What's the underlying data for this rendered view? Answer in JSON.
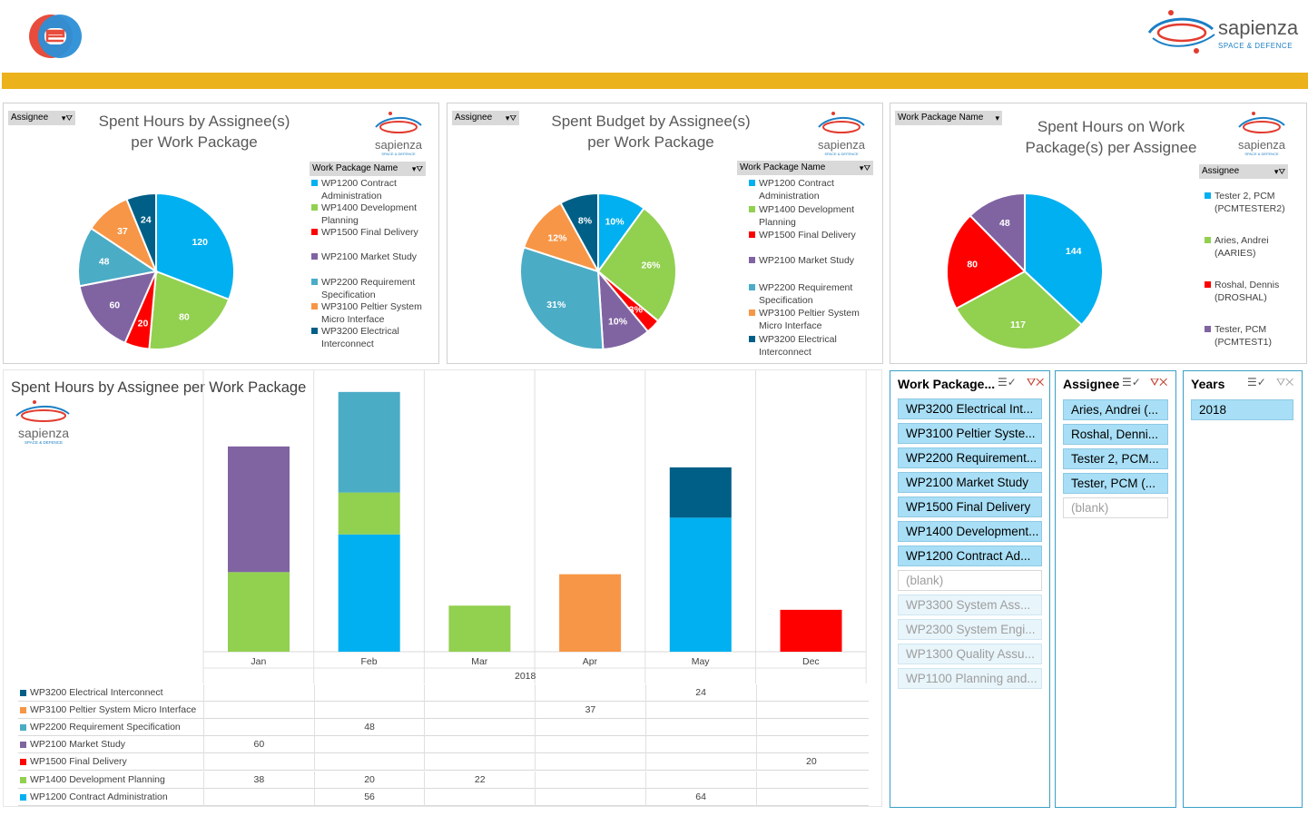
{
  "colors": {
    "wp1200": "#00b0f0",
    "wp1400": "#92d050",
    "wp1500": "#ff0000",
    "wp2100": "#8064a2",
    "wp2200": "#4bacc6",
    "wp3100": "#f79646",
    "wp3200": "#005f87",
    "gold": "#ecb21c",
    "slicer_border": "#3aa0c8"
  },
  "header": {
    "left_logo": "e-logo",
    "right_logo": {
      "name": "sapienza",
      "tagline": "SPACE & DEFENCE"
    }
  },
  "chart1": {
    "filter_label": "Assignee",
    "title_line1": "Spent Hours by Assignee(s)",
    "title_line2": "per Work Package",
    "legend_filter": "Work Package Name",
    "legend": [
      {
        "l1": "WP1200 Contract",
        "l2": "Administration"
      },
      {
        "l1": "WP1400 Development",
        "l2": "Planning"
      },
      {
        "l1": "WP1500 Final Delivery",
        "l2": ""
      },
      {
        "l1": "WP2100 Market Study",
        "l2": ""
      },
      {
        "l1": "WP2200 Requirement",
        "l2": "Specification"
      },
      {
        "l1": "WP3100 Peltier System",
        "l2": "Micro Interface"
      },
      {
        "l1": "WP3200 Electrical",
        "l2": "Interconnect"
      }
    ]
  },
  "chart2": {
    "filter_label": "Assignee",
    "title_line1": "Spent Budget by Assignee(s)",
    "title_line2": "per Work Package",
    "legend_filter": "Work Package Name",
    "legend": [
      {
        "l1": "WP1200 Contract",
        "l2": "Administration"
      },
      {
        "l1": "WP1400 Development",
        "l2": "Planning"
      },
      {
        "l1": "WP1500 Final Delivery",
        "l2": ""
      },
      {
        "l1": "WP2100 Market Study",
        "l2": ""
      },
      {
        "l1": "WP2200 Requirement",
        "l2": "Specification"
      },
      {
        "l1": "WP3100 Peltier System",
        "l2": "Micro Interface"
      },
      {
        "l1": "WP3200 Electrical",
        "l2": "Interconnect"
      }
    ]
  },
  "chart3": {
    "filter_label": "Work Package Name",
    "title_line1": "Spent Hours on Work",
    "title_line2": "Package(s) per Assignee",
    "legend_filter": "Assignee",
    "legend": [
      {
        "l1": "Tester 2, PCM",
        "l2": "(PCMTESTER2)"
      },
      {
        "l1": "Aries, Andrei",
        "l2": "(AARIES)"
      },
      {
        "l1": "Roshal, Dennis",
        "l2": "(DROSHAL)"
      },
      {
        "l1": "Tester, PCM",
        "l2": "(PCMTEST1)"
      }
    ]
  },
  "chart4": {
    "title": "Spent Hours by Assignee per Work Package",
    "year_label": "2018"
  },
  "chart_data": [
    {
      "type": "pie",
      "title": "Spent Hours by Assignee(s) per Work Package",
      "slices": [
        {
          "label": "WP1200 Contract Administration",
          "value": 120,
          "color": "#00b0f0",
          "text": "120"
        },
        {
          "label": "WP1400 Development Planning",
          "value": 80,
          "color": "#92d050",
          "text": "80"
        },
        {
          "label": "WP1500 Final Delivery",
          "value": 20,
          "color": "#ff0000",
          "text": "20"
        },
        {
          "label": "WP2100 Market Study",
          "value": 60,
          "color": "#8064a2",
          "text": "60"
        },
        {
          "label": "WP2200 Requirement Specification",
          "value": 48,
          "color": "#4bacc6",
          "text": "48"
        },
        {
          "label": "WP3100 Peltier System Micro Interface",
          "value": 37,
          "color": "#f79646",
          "text": "37"
        },
        {
          "label": "WP3200 Electrical Interconnect",
          "value": 24,
          "color": "#005f87",
          "text": "24"
        }
      ]
    },
    {
      "type": "pie",
      "title": "Spent Budget by Assignee(s) per Work Package",
      "slices": [
        {
          "label": "WP1200 Contract Administration",
          "value": 10,
          "color": "#00b0f0",
          "text": "10%"
        },
        {
          "label": "WP1400 Development Planning",
          "value": 26,
          "color": "#92d050",
          "text": "26%"
        },
        {
          "label": "WP1500 Final Delivery",
          "value": 3,
          "color": "#ff0000",
          "text": "3%"
        },
        {
          "label": "WP2100 Market Study",
          "value": 10,
          "color": "#8064a2",
          "text": "10%"
        },
        {
          "label": "WP2200 Requirement Specification",
          "value": 31,
          "color": "#4bacc6",
          "text": "31%"
        },
        {
          "label": "WP3100 Peltier System Micro Interface",
          "value": 12,
          "color": "#f79646",
          "text": "12%"
        },
        {
          "label": "WP3200 Electrical Interconnect",
          "value": 8,
          "color": "#005f87",
          "text": "8%"
        }
      ]
    },
    {
      "type": "pie",
      "title": "Spent Hours on Work Package(s) per Assignee",
      "slices": [
        {
          "label": "Tester 2, PCM (PCMTESTER2)",
          "value": 144,
          "color": "#00b0f0",
          "text": "144"
        },
        {
          "label": "Aries, Andrei (AARIES)",
          "value": 117,
          "color": "#92d050",
          "text": "117"
        },
        {
          "label": "Roshal, Dennis (DROSHAL)",
          "value": 80,
          "color": "#ff0000",
          "text": "80"
        },
        {
          "label": "Tester, PCM (PCMTEST1)",
          "value": 48,
          "color": "#8064a2",
          "text": "48"
        }
      ]
    },
    {
      "type": "bar",
      "stacked": true,
      "title": "Spent Hours by Assignee per Work Package",
      "categories": [
        "Jan",
        "Feb",
        "Mar",
        "Apr",
        "May",
        "Dec"
      ],
      "group_label": "2018",
      "series": [
        {
          "name": "WP3200 Electrical Interconnect",
          "color": "#005f87",
          "values": [
            null,
            null,
            null,
            null,
            24,
            null
          ]
        },
        {
          "name": "WP3100 Peltier System Micro Interface",
          "color": "#f79646",
          "values": [
            null,
            null,
            null,
            37,
            null,
            null
          ]
        },
        {
          "name": "WP2200 Requirement Specification",
          "color": "#4bacc6",
          "values": [
            null,
            48,
            null,
            null,
            null,
            null
          ]
        },
        {
          "name": "WP2100 Market Study",
          "color": "#8064a2",
          "values": [
            60,
            null,
            null,
            null,
            null,
            null
          ]
        },
        {
          "name": "WP1500 Final Delivery",
          "color": "#ff0000",
          "values": [
            null,
            null,
            null,
            null,
            null,
            20
          ]
        },
        {
          "name": "WP1400 Development Planning",
          "color": "#92d050",
          "values": [
            38,
            20,
            22,
            null,
            null,
            null
          ]
        },
        {
          "name": "WP1200 Contract Administration",
          "color": "#00b0f0",
          "values": [
            null,
            56,
            null,
            null,
            64,
            null
          ]
        }
      ],
      "ylim": [
        0,
        130
      ]
    }
  ],
  "slicers": {
    "workpackage": {
      "title": "Work Package...",
      "items": [
        {
          "label": "WP3200 Electrical Int...",
          "state": "sel"
        },
        {
          "label": "WP3100 Peltier Syste...",
          "state": "sel"
        },
        {
          "label": "WP2200 Requirement...",
          "state": "sel"
        },
        {
          "label": "WP2100 Market Study",
          "state": "sel"
        },
        {
          "label": "WP1500 Final Delivery",
          "state": "sel"
        },
        {
          "label": "WP1400 Development...",
          "state": "sel"
        },
        {
          "label": "WP1200 Contract Ad...",
          "state": "sel"
        },
        {
          "label": "(blank)",
          "state": "blank"
        },
        {
          "label": "WP3300 System Ass...",
          "state": "dim"
        },
        {
          "label": "WP2300 System Engi...",
          "state": "dim"
        },
        {
          "label": "WP1300 Quality Assu...",
          "state": "dim"
        },
        {
          "label": "WP1100 Planning and...",
          "state": "dim"
        }
      ]
    },
    "assignee": {
      "title": "Assignee",
      "items": [
        {
          "label": "Aries, Andrei (...",
          "state": "sel"
        },
        {
          "label": "Roshal, Denni...",
          "state": "sel"
        },
        {
          "label": "Tester 2, PCM...",
          "state": "sel"
        },
        {
          "label": "Tester, PCM (...",
          "state": "sel"
        },
        {
          "label": "(blank)",
          "state": "blank"
        }
      ]
    },
    "years": {
      "title": "Years",
      "items": [
        {
          "label": "2018",
          "state": "sel"
        }
      ]
    }
  }
}
